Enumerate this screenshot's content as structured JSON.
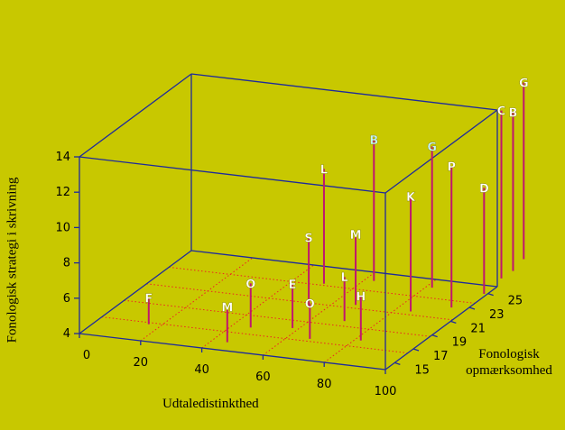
{
  "chart_data": {
    "type": "scatter",
    "title": "",
    "xlabel": "Udtaledistinkthed",
    "ylabel": "Fonologisk strategi i skrivning",
    "zlabel_line1": "Fonologisk",
    "zlabel_line2": "opmærksomhed",
    "xlim": [
      0,
      100
    ],
    "ylim": [
      4,
      14
    ],
    "zlim": [
      14,
      25
    ],
    "x_ticks": [
      "0",
      "20",
      "40",
      "60",
      "80",
      "100"
    ],
    "y_ticks": [
      "4",
      "6",
      "8",
      "10",
      "12",
      "14"
    ],
    "z_ticks": [
      "15",
      "17",
      "19",
      "21",
      "23",
      "25"
    ],
    "points": [
      {
        "label": "F",
        "x": 16,
        "z": 16,
        "y": 5.5
      },
      {
        "label": "M",
        "x": 45,
        "z": 15,
        "y": 6.0
      },
      {
        "label": "O",
        "x": 46,
        "z": 17,
        "y": 6.5
      },
      {
        "label": "E",
        "x": 58,
        "z": 17.5,
        "y": 6.5
      },
      {
        "label": "S",
        "x": 55,
        "z": 20,
        "y": 8.0
      },
      {
        "label": "L",
        "x": 50,
        "z": 23,
        "y": 10.5
      },
      {
        "label": "O",
        "x": 67,
        "z": 16.5,
        "y": 6.0
      },
      {
        "label": "L",
        "x": 70,
        "z": 19,
        "y": 6.5
      },
      {
        "label": "M",
        "x": 67,
        "z": 21,
        "y": 8.0
      },
      {
        "label": "B",
        "x": 63,
        "z": 24,
        "y": 12.0
      },
      {
        "label": "H",
        "x": 82,
        "z": 17,
        "y": 6.5
      },
      {
        "label": "K",
        "x": 85,
        "z": 21,
        "y": 10.5
      },
      {
        "label": "G",
        "x": 82,
        "z": 24,
        "y": 12.0
      },
      {
        "label": "P",
        "x": 95,
        "z": 22,
        "y": 12.0
      },
      {
        "label": "D",
        "x": 99,
        "z": 24,
        "y": 10.0
      },
      {
        "label": "C",
        "x": 98,
        "z": 26,
        "y": 13.5
      },
      {
        "label": "B",
        "x": 98.5,
        "z": 27,
        "y": 13.0
      },
      {
        "label": "G",
        "x": 97,
        "z": 28.5,
        "y": 14.0
      }
    ]
  },
  "colors": {
    "background": "#c8c800",
    "frame": "#1e2a9c",
    "floor_grid": "#ee2222",
    "stem": "#c0166e",
    "label_default": "#ffffff",
    "label_highlight": "#c6f4ff"
  }
}
